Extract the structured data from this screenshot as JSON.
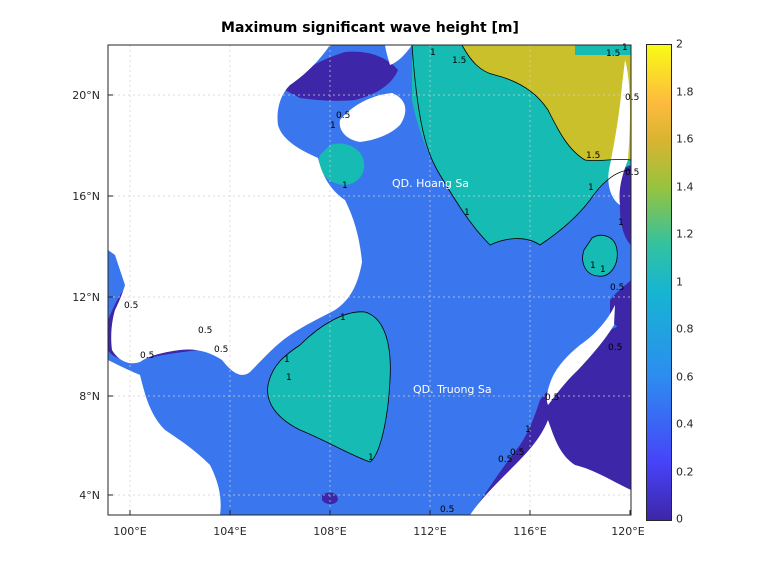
{
  "title": "Maximum significant wave height [m]",
  "axes": {
    "x_ticks": [
      "100°E",
      "104°E",
      "108°E",
      "112°E",
      "116°E",
      "120°E"
    ],
    "y_ticks": [
      "20°N",
      "16°N",
      "12°N",
      "8°N",
      "4°N"
    ]
  },
  "place_labels": {
    "paracel": "QD. Hoang Sa",
    "spratly": "QD. Truong Sa"
  },
  "contour_labels": [
    "1",
    "1.5",
    "1",
    "1.5",
    "1.5",
    "1",
    "1",
    "0.5",
    "1",
    "1",
    "0.5",
    "0.5",
    "0.5",
    "0.5",
    "1",
    "1",
    "1",
    "0.5",
    "0.5",
    "1",
    "0.5",
    "1",
    "1",
    "0.5",
    "1",
    "0.5",
    "0.5",
    "0.5",
    "0.5",
    "1"
  ],
  "colorbar": {
    "ticks": [
      "2",
      "1.8",
      "1.6",
      "1.4",
      "1.2",
      "1",
      "0.8",
      "0.6",
      "0.4",
      "0.2",
      "0"
    ],
    "range": [
      0,
      2
    ],
    "colormap": "parula"
  },
  "colors": {
    "land": "#ffffff",
    "low": "#3e26a8",
    "mid": "#3a76ee",
    "high": "#16bcb3",
    "peak": "#c9c02b"
  }
}
